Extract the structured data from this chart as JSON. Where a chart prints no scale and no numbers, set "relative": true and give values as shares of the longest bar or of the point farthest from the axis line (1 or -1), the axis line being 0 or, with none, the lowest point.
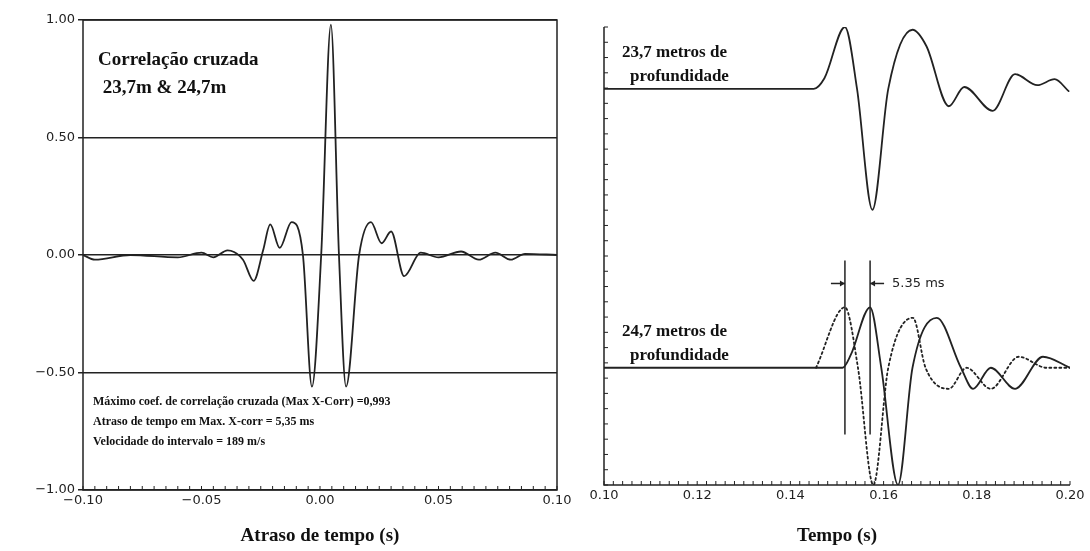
{
  "chart_data": [
    {
      "type": "line",
      "xlabel": "Atraso de tempo (s)",
      "annotations": [
        "Correlação cruzada\n 23,7m & 24,7m",
        "Máximo coef. de correlação cruzada (Max X-Corr) =0,993\nAtraso de tempo em Max. X-corr = 5,35 ms\nVelocidade do intervalo = 189 m/s"
      ],
      "xlim": [
        -0.1,
        0.1
      ],
      "xticks": [
        {
          "value": -0.1,
          "label": "−0.10"
        },
        {
          "value": -0.05,
          "label": "−0.05"
        },
        {
          "value": 0,
          "label": "0.00"
        },
        {
          "value": 0.05,
          "label": "0.05"
        },
        {
          "value": 0.1,
          "label": "0.10"
        }
      ],
      "ylim": [
        -1,
        1
      ],
      "yticks": [
        {
          "value": -1,
          "label": "−1.00"
        },
        {
          "value": -0.5,
          "label": "−0.50"
        },
        {
          "value": 0,
          "label": "0.00"
        },
        {
          "value": 0.5,
          "label": "0.50"
        },
        {
          "value": 1,
          "label": "1.00"
        }
      ],
      "grid": "y",
      "line_style": "solid",
      "marker": "none",
      "series": [
        {
          "color": "#222222",
          "x": [
            -0.1,
            -0.095,
            -0.08,
            -0.06,
            -0.05,
            -0.045,
            -0.039,
            -0.0325,
            -0.028,
            -0.024,
            -0.021,
            -0.017,
            -0.012,
            -0.0072,
            -0.0034,
            0.0005,
            0.0046,
            0.008,
            0.011,
            0.0165,
            0.0215,
            0.026,
            0.03,
            0.0355,
            0.0425,
            0.05,
            0.0595,
            0.067,
            0.074,
            0.0805,
            0.0865,
            0.1
          ],
          "values": [
            0,
            -0.02,
            0,
            -0.01,
            0.01,
            -0.01,
            0.02,
            -0.02,
            -0.11,
            0.02,
            0.13,
            0.03,
            0.14,
            0,
            -0.56,
            0,
            0.98,
            0,
            -0.56,
            0,
            0.14,
            0.05,
            0.1,
            -0.09,
            0.01,
            -0.01,
            0.015,
            -0.02,
            0.01,
            -0.02,
            0.005,
            0
          ]
        }
      ]
    },
    {
      "type": "line",
      "xlabel": "Tempo (s)",
      "relative": true,
      "tick_labels": "x",
      "xlim": [
        0.1,
        0.2
      ],
      "xticks": [
        {
          "value": 0.1,
          "label": "0.10"
        },
        {
          "value": 0.12,
          "label": "0.12"
        },
        {
          "value": 0.14,
          "label": "0.14"
        },
        {
          "value": 0.16,
          "label": "0.16"
        },
        {
          "value": 0.18,
          "label": "0.18"
        },
        {
          "value": 0.2,
          "label": "0.20"
        }
      ],
      "legend": "left",
      "marker": "none",
      "ref_lines": [
        {
          "axis": "x",
          "value": 0.1517
        },
        {
          "axis": "x",
          "value": 0.1571,
          "label": "5.35 ms"
        }
      ],
      "series": [
        {
          "name": "23,7 metros de profundidade",
          "color": "#222222",
          "line_style": "solid",
          "x": [
            0.1,
            0.12,
            0.145,
            0.1473,
            0.1517,
            0.1543,
            0.1576,
            0.161,
            0.1662,
            0.1692,
            0.174,
            0.1773,
            0.1834,
            0.1882,
            0.193,
            0.1967,
            0.1997
          ],
          "values": [
            0.865,
            0.865,
            0.865,
            0.888,
            1.0,
            0.865,
            0.601,
            0.865,
            0.994,
            0.958,
            0.827,
            0.869,
            0.817,
            0.897,
            0.873,
            0.886,
            0.86
          ]
        },
        {
          "name": "24,7 metros de profundidade",
          "color": "#222222",
          "line_style": "solid",
          "x": [
            0.1,
            0.12,
            0.14,
            0.1512,
            0.153,
            0.1571,
            0.1595,
            0.1631,
            0.1662,
            0.1714,
            0.1766,
            0.1792,
            0.183,
            0.1882,
            0.1942,
            0.2
          ],
          "values": [
            0.256,
            0.256,
            0.256,
            0.256,
            0.285,
            0.388,
            0.256,
            0.0,
            0.256,
            0.365,
            0.256,
            0.21,
            0.256,
            0.21,
            0.28,
            0.256
          ]
        },
        {
          "color": "#222222",
          "line_style": "dotted",
          "x": [
            0.1455,
            0.1517,
            0.1545,
            0.1578,
            0.161,
            0.1663,
            0.169,
            0.174,
            0.1778,
            0.183,
            0.189,
            0.195,
            0.2
          ],
          "values": [
            0.256,
            0.388,
            0.256,
            0.0,
            0.256,
            0.365,
            0.256,
            0.21,
            0.256,
            0.21,
            0.28,
            0.256,
            0.256
          ]
        }
      ]
    }
  ]
}
